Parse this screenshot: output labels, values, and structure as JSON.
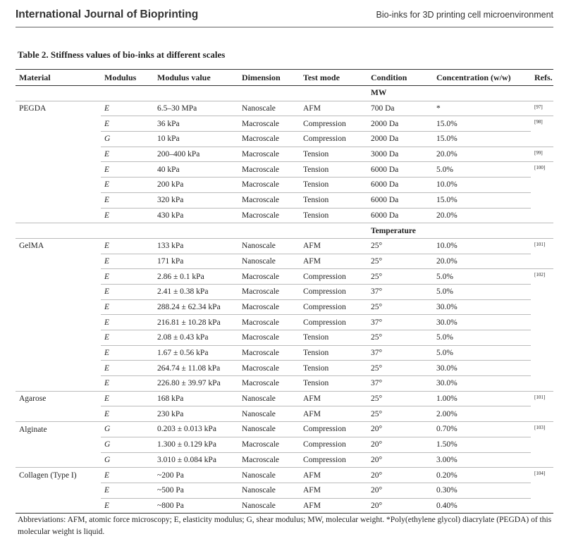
{
  "header": {
    "journal": "International Journal of Bioprinting",
    "running_title": "Bio-inks for 3D printing cell microenvironment"
  },
  "table": {
    "caption": "Table 2. Stiffness values of bio-inks at different scales",
    "columns": [
      "Material",
      "Modulus",
      "Modulus value",
      "Dimension",
      "Test mode",
      "Condition",
      "Concentration (w/w)",
      "Refs."
    ],
    "rows": [
      [
        null,
        null,
        null,
        null,
        null,
        "MW",
        null,
        null
      ],
      [
        "PEGDA",
        "E",
        "6.5–30 MPa",
        "Nanoscale",
        "AFM",
        "700 Da",
        "*",
        "[97]"
      ],
      [
        null,
        "E",
        "36 kPa",
        "Macroscale",
        "Compression",
        "2000 Da",
        "15.0%",
        "[98]"
      ],
      [
        null,
        "G",
        "10 kPa",
        "Macroscale",
        "Compression",
        "2000 Da",
        "15.0%",
        null
      ],
      [
        null,
        "E",
        "200–400 kPa",
        "Macroscale",
        "Tension",
        "3000 Da",
        "20.0%",
        "[99]"
      ],
      [
        null,
        "E",
        "40 kPa",
        "Macroscale",
        "Tension",
        "6000 Da",
        "5.0%",
        "[100]"
      ],
      [
        null,
        "E",
        "200 kPa",
        "Macroscale",
        "Tension",
        "6000 Da",
        "10.0%",
        null
      ],
      [
        null,
        "E",
        "320 kPa",
        "Macroscale",
        "Tension",
        "6000 Da",
        "15.0%",
        null
      ],
      [
        null,
        "E",
        "430 kPa",
        "Macroscale",
        "Tension",
        "6000 Da",
        "20.0%",
        null
      ],
      [
        null,
        null,
        null,
        null,
        null,
        "Temperature",
        null,
        null
      ],
      [
        "GelMA",
        "E",
        "133 kPa",
        "Nanoscale",
        "AFM",
        "25°",
        "10.0%",
        "[101]"
      ],
      [
        null,
        "E",
        "171 kPa",
        "Nanoscale",
        "AFM",
        "25°",
        "20.0%",
        null
      ],
      [
        null,
        "E",
        "2.86 ± 0.1 kPa",
        "Macroscale",
        "Compression",
        "25°",
        "5.0%",
        "[102]"
      ],
      [
        null,
        "E",
        "2.41 ± 0.38 kPa",
        "Macroscale",
        "Compression",
        "37°",
        "5.0%",
        null
      ],
      [
        null,
        "E",
        "288.24 ± 62.34 kPa",
        "Macroscale",
        "Compression",
        "25°",
        "30.0%",
        null
      ],
      [
        null,
        "E",
        "216.81 ± 10.28 kPa",
        "Macroscale",
        "Compression",
        "37°",
        "30.0%",
        null
      ],
      [
        null,
        "E",
        "2.08 ± 0.43 kPa",
        "Macroscale",
        "Tension",
        "25°",
        "5.0%",
        null
      ],
      [
        null,
        "E",
        "1.67 ± 0.56 kPa",
        "Macroscale",
        "Tension",
        "37°",
        "5.0%",
        null
      ],
      [
        null,
        "E",
        "264.74 ± 11.08 kPa",
        "Macroscale",
        "Tension",
        "25°",
        "30.0%",
        null
      ],
      [
        null,
        "E",
        "226.80 ± 39.97 kPa",
        "Macroscale",
        "Tension",
        "37°",
        "30.0%",
        null
      ],
      [
        "Agarose",
        "E",
        "168 kPa",
        "Nanoscale",
        "AFM",
        "25°",
        "1.00%",
        "[101]"
      ],
      [
        null,
        "E",
        "230 kPa",
        "Nanoscale",
        "AFM",
        "25°",
        "2.00%",
        null
      ],
      [
        "Alginate",
        "G",
        "0.203 ± 0.013 kPa",
        "Nanoscale",
        "Compression",
        "20°",
        "0.70%",
        "[103]"
      ],
      [
        null,
        "G",
        "1.300 ± 0.129 kPa",
        "Macroscale",
        "Compression",
        "20°",
        "1.50%",
        null
      ],
      [
        null,
        "G",
        "3.010 ± 0.084 kPa",
        "Macroscale",
        "Compression",
        "20°",
        "3.00%",
        null
      ],
      [
        "Collagen (Type I)",
        "E",
        "~200 Pa",
        "Nanoscale",
        "AFM",
        "20°",
        "0.20%",
        "[104]"
      ],
      [
        null,
        "E",
        "~500 Pa",
        "Nanoscale",
        "AFM",
        "20°",
        "0.30%",
        null
      ],
      [
        null,
        "E",
        "~800 Pa",
        "Nanoscale",
        "AFM",
        "20°",
        "0.40%",
        null
      ]
    ],
    "footnote": "Abbreviations: AFM, atomic force microscopy; E, elasticity modulus; G, shear modulus; MW, molecular weight. *Poly(ethylene glycol) diacrylate (PEGDA) of this molecular weight is liquid."
  }
}
